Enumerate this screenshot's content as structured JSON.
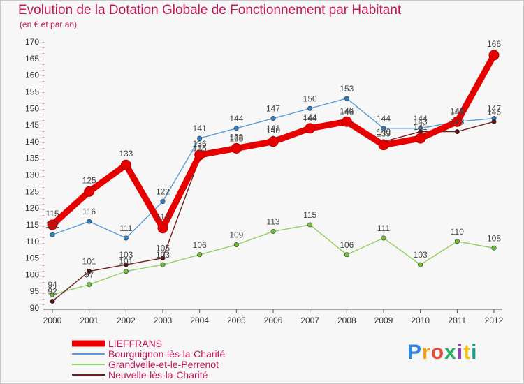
{
  "title": "Evolution de la Dotation Globale de Fonctionnement par Habitant",
  "subtitle": "(en € et par an)",
  "logo": "Proxiti",
  "chart_data": {
    "type": "line",
    "title": "Evolution de la Dotation Globale de Fonctionnement par Habitant",
    "subtitle": "(en € et par an)",
    "xlabel": "",
    "ylabel": "",
    "x": [
      "2000",
      "2001",
      "2002",
      "2003",
      "2004",
      "2005",
      "2006",
      "2007",
      "2008",
      "2009",
      "2010",
      "2011",
      "2012"
    ],
    "ylim": [
      90,
      170
    ],
    "yticks": [
      90,
      95,
      100,
      105,
      110,
      115,
      120,
      125,
      130,
      135,
      140,
      145,
      150,
      155,
      160,
      165,
      170
    ],
    "grid": false,
    "legend_position": "bottom-left",
    "series": [
      {
        "name": "LIEFFRANS",
        "color": "#e60000",
        "values": [
          115,
          125,
          133,
          114,
          136,
          138,
          140,
          144,
          146,
          139,
          141,
          146,
          166
        ],
        "labels": [
          "115",
          "125",
          "133",
          "114",
          "136",
          "138",
          "140",
          "144",
          "146",
          "139",
          "141",
          "146",
          "166"
        ]
      },
      {
        "name": "Bourguignon-lès-la-Charité",
        "color": "#5b9bd5",
        "values": [
          112,
          116,
          111,
          122,
          141,
          144,
          147,
          150,
          153,
          144,
          144,
          146,
          147
        ],
        "labels": [
          "112",
          "116",
          "111",
          "122",
          "141",
          "144",
          "147",
          "150",
          "153",
          "144",
          "144",
          "146",
          "147"
        ]
      },
      {
        "name": "Grandvelle-et-le-Perrenot",
        "color": "#8fd160",
        "values": [
          94,
          97,
          101,
          103,
          106,
          109,
          113,
          115,
          106,
          111,
          103,
          110,
          108
        ],
        "labels": [
          "94",
          "97",
          "101",
          "103",
          "106",
          "109",
          "113",
          "115",
          "106",
          "111",
          "103",
          "110",
          "108"
        ]
      },
      {
        "name": "Neuvelle-lès-la-Charité",
        "color": "#6d1f1f",
        "values": [
          92,
          101,
          103,
          105,
          135,
          138,
          141,
          144,
          146,
          140,
          143,
          143,
          146
        ],
        "labels": [
          "92",
          "101",
          "103",
          "105",
          "135",
          "138",
          "141",
          "144",
          "146",
          "140",
          "143",
          "143",
          "146"
        ]
      }
    ]
  }
}
